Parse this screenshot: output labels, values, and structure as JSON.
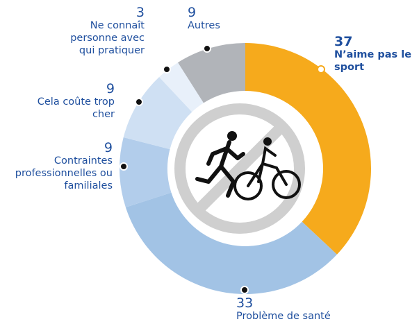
{
  "chart_data": {
    "type": "donut",
    "categories": [
      "N’aime pas le sport",
      "Problème de santé",
      "Contraintes professionnelles ou familiales",
      "Cela coûte trop cher",
      "Ne connaît personne avec qui pratiquer",
      "Autres"
    ],
    "values": [
      37,
      33,
      9,
      9,
      3,
      9
    ],
    "colors": [
      "#f6aa1c",
      "#a2c3e5",
      "#b2cdeb",
      "#cfe0f3",
      "#e8f0fa",
      "#b1b4b9"
    ]
  }
}
